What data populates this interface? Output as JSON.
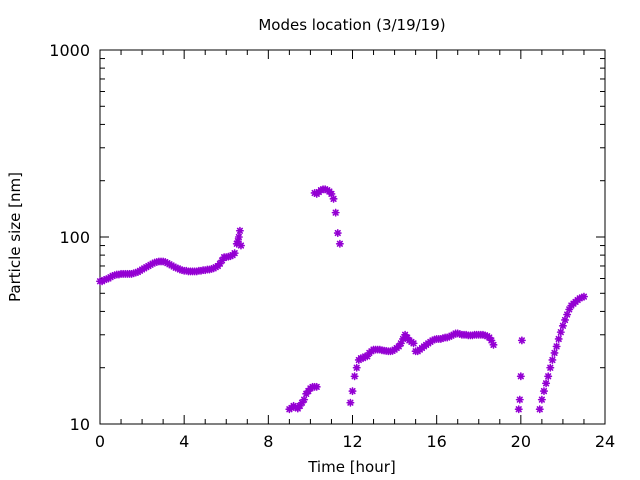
{
  "chart_data": {
    "type": "scatter",
    "title": "Modes location (3/19/19)",
    "xlabel": "Time [hour]",
    "ylabel": "Particle size [nm]",
    "xlim": [
      0,
      24
    ],
    "ylim": [
      10,
      1000
    ],
    "yscale": "log",
    "x_ticks": [
      "0",
      "4",
      "8",
      "12",
      "16",
      "20",
      "24"
    ],
    "y_ticks": [
      "10",
      "100",
      "1000"
    ],
    "grid": false,
    "marker_color": "#9400d3",
    "series": [
      {
        "points": [
          [
            0.0,
            58
          ],
          [
            0.1,
            58
          ],
          [
            0.2,
            59
          ],
          [
            0.3,
            59.5
          ],
          [
            0.4,
            60
          ],
          [
            0.5,
            61
          ],
          [
            0.6,
            62
          ],
          [
            0.7,
            62.5
          ],
          [
            0.8,
            63
          ],
          [
            0.9,
            63
          ],
          [
            1.0,
            63.5
          ],
          [
            1.1,
            63.5
          ],
          [
            1.2,
            63.5
          ],
          [
            1.3,
            63.5
          ],
          [
            1.4,
            63.5
          ],
          [
            1.5,
            63.5
          ],
          [
            1.6,
            64
          ],
          [
            1.7,
            64.5
          ],
          [
            1.8,
            65
          ],
          [
            1.9,
            66
          ],
          [
            2.0,
            67
          ],
          [
            2.1,
            68
          ],
          [
            2.2,
            69
          ],
          [
            2.3,
            70
          ],
          [
            2.4,
            71
          ],
          [
            2.5,
            72
          ],
          [
            2.6,
            73
          ],
          [
            2.7,
            73.5
          ],
          [
            2.8,
            74
          ],
          [
            2.9,
            74
          ],
          [
            3.0,
            74
          ],
          [
            3.1,
            73.5
          ],
          [
            3.2,
            72.5
          ],
          [
            3.3,
            71.5
          ],
          [
            3.4,
            70.5
          ],
          [
            3.5,
            69.5
          ],
          [
            3.6,
            68.5
          ],
          [
            3.7,
            68
          ],
          [
            3.8,
            67
          ],
          [
            3.9,
            66.5
          ],
          [
            4.0,
            66
          ],
          [
            4.1,
            66
          ],
          [
            4.2,
            65.5
          ],
          [
            4.3,
            65.5
          ],
          [
            4.4,
            65.5
          ],
          [
            4.5,
            65.5
          ],
          [
            4.6,
            65.5
          ],
          [
            4.7,
            66
          ],
          [
            4.8,
            66
          ],
          [
            4.9,
            66.5
          ],
          [
            5.0,
            66.5
          ],
          [
            5.1,
            67
          ],
          [
            5.2,
            67
          ],
          [
            5.3,
            67.5
          ],
          [
            5.4,
            68
          ],
          [
            5.5,
            69
          ],
          [
            5.6,
            70
          ],
          [
            5.7,
            72
          ],
          [
            5.8,
            75
          ],
          [
            5.9,
            78
          ],
          [
            6.0,
            78
          ],
          [
            6.1,
            78.5
          ],
          [
            6.2,
            79
          ],
          [
            6.3,
            80
          ],
          [
            6.4,
            82
          ],
          [
            6.5,
            92
          ],
          [
            6.55,
            95
          ],
          [
            6.6,
            100
          ],
          [
            6.65,
            108
          ],
          [
            6.7,
            90
          ]
        ]
      },
      {
        "points": [
          [
            9.0,
            12
          ],
          [
            9.1,
            12.2
          ],
          [
            9.2,
            12.5
          ],
          [
            9.3,
            12.3
          ],
          [
            9.4,
            12.1
          ],
          [
            9.5,
            12.5
          ],
          [
            9.6,
            13
          ],
          [
            9.7,
            13.5
          ],
          [
            9.8,
            14.5
          ],
          [
            9.9,
            15
          ],
          [
            10.0,
            15.5
          ],
          [
            10.1,
            15.8
          ],
          [
            10.2,
            15.8
          ],
          [
            10.3,
            15.8
          ]
        ]
      },
      {
        "points": [
          [
            10.2,
            172
          ],
          [
            10.3,
            170
          ],
          [
            10.4,
            174
          ],
          [
            10.5,
            178
          ],
          [
            10.6,
            180
          ],
          [
            10.7,
            180
          ],
          [
            10.8,
            178
          ],
          [
            10.9,
            175
          ],
          [
            11.0,
            170
          ],
          [
            11.1,
            160
          ],
          [
            11.2,
            135
          ],
          [
            11.3,
            105
          ],
          [
            11.4,
            92
          ]
        ]
      },
      {
        "points": [
          [
            11.9,
            13
          ],
          [
            12.0,
            15
          ],
          [
            12.1,
            18
          ],
          [
            12.2,
            20
          ],
          [
            12.3,
            22
          ],
          [
            12.4,
            22.5
          ],
          [
            12.5,
            22.5
          ],
          [
            12.6,
            23
          ],
          [
            12.7,
            23
          ],
          [
            12.8,
            24
          ],
          [
            12.9,
            24.5
          ],
          [
            13.0,
            25
          ],
          [
            13.1,
            25
          ],
          [
            13.2,
            25
          ],
          [
            13.3,
            25
          ],
          [
            13.4,
            24.8
          ],
          [
            13.5,
            24.7
          ],
          [
            13.6,
            24.6
          ],
          [
            13.7,
            24.5
          ],
          [
            13.8,
            24.5
          ],
          [
            13.9,
            24.6
          ],
          [
            14.0,
            25
          ],
          [
            14.1,
            25.5
          ],
          [
            14.2,
            26
          ],
          [
            14.3,
            27
          ],
          [
            14.4,
            28.5
          ],
          [
            14.5,
            30
          ],
          [
            14.6,
            29
          ],
          [
            14.7,
            28
          ],
          [
            14.8,
            27.5
          ],
          [
            14.9,
            27
          ],
          [
            15.0,
            24.5
          ],
          [
            15.1,
            24.5
          ],
          [
            15.2,
            25
          ],
          [
            15.3,
            25.5
          ],
          [
            15.4,
            26
          ],
          [
            15.5,
            26.5
          ],
          [
            15.6,
            27
          ],
          [
            15.7,
            27.5
          ],
          [
            15.8,
            28
          ],
          [
            15.9,
            28.3
          ],
          [
            16.0,
            28.5
          ],
          [
            16.1,
            28.5
          ],
          [
            16.2,
            28.5
          ],
          [
            16.3,
            28.8
          ],
          [
            16.4,
            29
          ],
          [
            16.5,
            29
          ],
          [
            16.6,
            29.3
          ],
          [
            16.7,
            29.7
          ],
          [
            16.8,
            30
          ],
          [
            16.9,
            30.5
          ],
          [
            17.0,
            30.5
          ],
          [
            17.1,
            30.3
          ],
          [
            17.2,
            30
          ],
          [
            17.3,
            30
          ],
          [
            17.4,
            30
          ],
          [
            17.5,
            29.8
          ],
          [
            17.6,
            29.8
          ],
          [
            17.7,
            29.8
          ],
          [
            17.8,
            30
          ],
          [
            17.9,
            30
          ],
          [
            18.0,
            30
          ],
          [
            18.1,
            30
          ],
          [
            18.2,
            30
          ],
          [
            18.3,
            29.8
          ],
          [
            18.4,
            29.5
          ],
          [
            18.5,
            29
          ],
          [
            18.6,
            28
          ],
          [
            18.7,
            26.5
          ]
        ]
      },
      {
        "points": [
          [
            19.9,
            12
          ],
          [
            19.95,
            13.5
          ],
          [
            20.0,
            18
          ],
          [
            20.05,
            28
          ]
        ]
      },
      {
        "points": [
          [
            20.9,
            12
          ],
          [
            21.0,
            13.5
          ],
          [
            21.1,
            15
          ],
          [
            21.2,
            16.5
          ],
          [
            21.3,
            18
          ],
          [
            21.4,
            20
          ],
          [
            21.5,
            22
          ],
          [
            21.6,
            24
          ],
          [
            21.7,
            26
          ],
          [
            21.8,
            28.5
          ],
          [
            21.9,
            31
          ],
          [
            22.0,
            33.5
          ],
          [
            22.1,
            36
          ],
          [
            22.2,
            38.5
          ],
          [
            22.3,
            41
          ],
          [
            22.4,
            43
          ],
          [
            22.5,
            44
          ],
          [
            22.6,
            45
          ],
          [
            22.7,
            46
          ],
          [
            22.8,
            47
          ],
          [
            22.9,
            47.5
          ],
          [
            23.0,
            48
          ]
        ]
      }
    ]
  }
}
